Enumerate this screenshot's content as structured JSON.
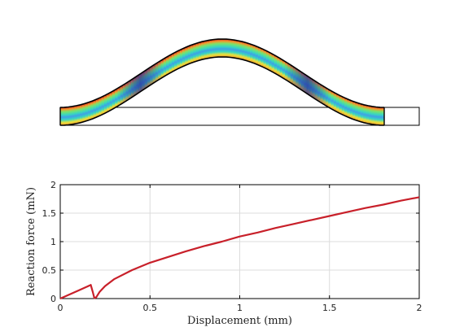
{
  "chart_data": {
    "type": "line",
    "title": "",
    "xlabel": "Displacement (mm)",
    "ylabel": "Reaction force (mN)",
    "xlim": [
      0,
      2
    ],
    "ylim": [
      0,
      2
    ],
    "x_ticks": [
      "0",
      "0.5",
      "1",
      "1.5",
      "2"
    ],
    "y_ticks": [
      "0",
      "0.5",
      "1",
      "1.5",
      "2"
    ],
    "grid": true,
    "legend": "none",
    "series": [
      {
        "color": "#c8202a",
        "x": [
          0,
          0.05,
          0.1,
          0.15,
          0.17,
          0.18,
          0.19,
          0.2,
          0.22,
          0.25,
          0.3,
          0.4,
          0.5,
          0.6,
          0.7,
          0.8,
          0.9,
          1.0,
          1.1,
          1.2,
          1.3,
          1.4,
          1.5,
          1.6,
          1.7,
          1.8,
          1.9,
          2.0
        ],
        "y": [
          0,
          0.07,
          0.14,
          0.21,
          0.24,
          0.13,
          0.01,
          0.02,
          0.12,
          0.22,
          0.34,
          0.5,
          0.63,
          0.73,
          0.83,
          0.92,
          1.0,
          1.09,
          1.16,
          1.24,
          1.31,
          1.38,
          1.45,
          1.52,
          1.59,
          1.65,
          1.72,
          1.78
        ]
      }
    ]
  },
  "illustration": {
    "description_icon": "buckled-beam-stress-map",
    "outline_color": "#000000",
    "colormap": [
      "#2b2f9a",
      "#3a62d6",
      "#3fa0e6",
      "#38d6c0",
      "#7ae36a",
      "#e8e23c",
      "#f29a2e",
      "#d8291c"
    ]
  }
}
